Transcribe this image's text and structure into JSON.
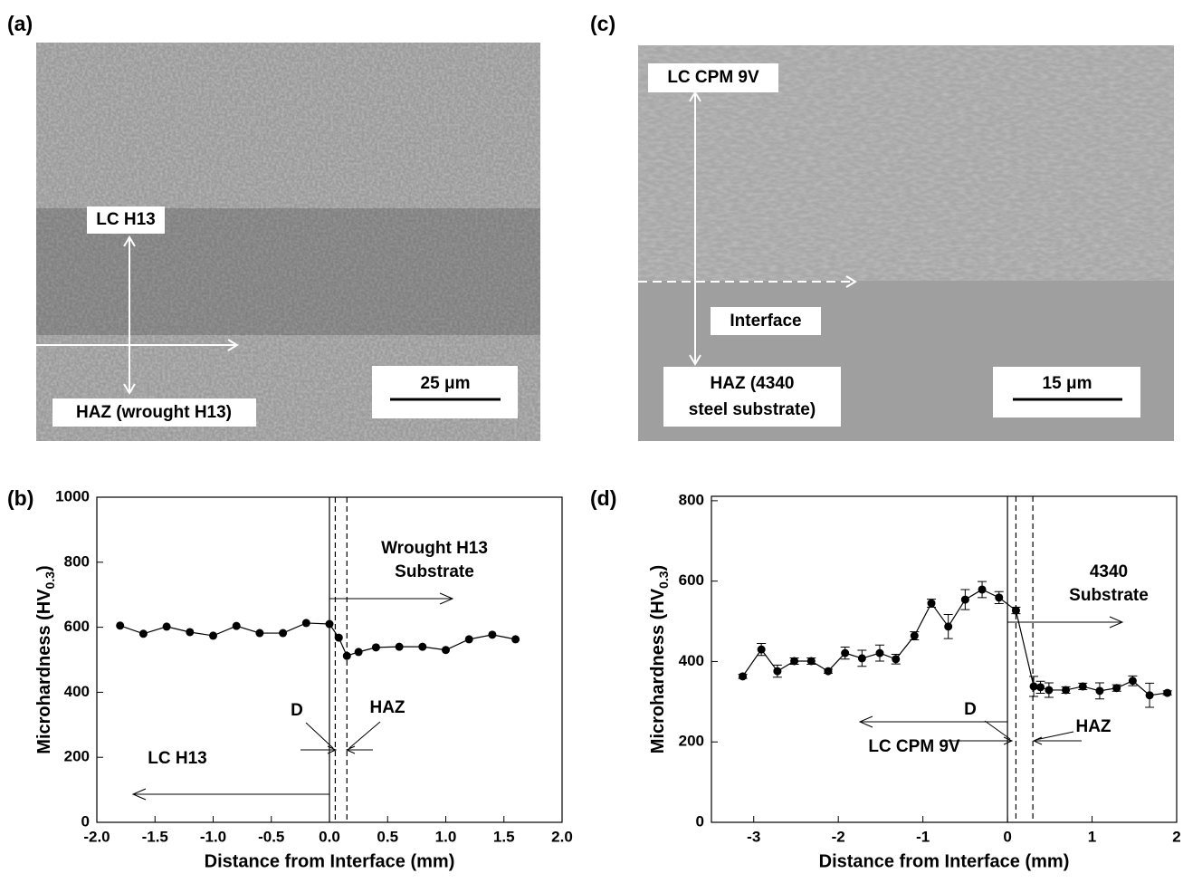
{
  "panels": [
    {
      "panel_label": "(a)",
      "labels": [
        "LC H13",
        "HAZ (wrought H13)"
      ],
      "scale_bar": "25 μm"
    },
    {
      "panel_label": "(c)",
      "labels": [
        "LC CPM 9V",
        "Interface",
        "HAZ (4340",
        "steel substrate)"
      ],
      "scale_bar": "15 μm"
    }
  ],
  "chart_data": [
    {
      "type": "line",
      "panel_label": "(b)",
      "x_label": "Distance from Interface (mm)",
      "y_label": "Microhardness (HV",
      "y_label_sub": "0.3",
      "y_label_end": ")",
      "xlim": [
        -2.0,
        2.0
      ],
      "ylim": [
        0,
        1000
      ],
      "xticks": [
        {
          "value": -2.0,
          "label": "-2.0"
        },
        -1.5,
        {
          "value": -1.0,
          "label": "-1.0"
        },
        -0.5,
        {
          "value": 0.0,
          "label": "0.0"
        },
        0.5,
        {
          "value": 1.0,
          "label": "1.0"
        },
        1.5,
        {
          "value": 2.0,
          "label": "2.0"
        }
      ],
      "yticks": [
        0,
        200,
        400,
        600,
        800,
        1000
      ],
      "color": "#000000",
      "x": [
        -1.8,
        -1.6,
        -1.4,
        -1.2,
        -1.0,
        -0.8,
        -0.6,
        -0.4,
        -0.2,
        0.0,
        0.08,
        0.15,
        0.25,
        0.4,
        0.6,
        0.8,
        1.0,
        1.2,
        1.4,
        1.6
      ],
      "values": [
        605,
        580,
        602,
        585,
        574,
        604,
        582,
        582,
        613,
        610,
        568,
        512,
        524,
        538,
        540,
        540,
        530,
        563,
        577,
        563
      ],
      "reference_lines": [
        {
          "x": 0.0,
          "style": "solid"
        },
        {
          "x": 0.05,
          "style": "dashed"
        },
        {
          "x": 0.15,
          "style": "dashed"
        }
      ],
      "annotations": [
        "Wrought H13",
        "Substrate",
        "LC H13",
        "D",
        "HAZ"
      ]
    },
    {
      "type": "line",
      "panel_label": "(d)",
      "x_label": "Distance from Interface (mm)",
      "y_label": "Microhardness (HV",
      "y_label_sub": "0.3",
      "y_label_end": ")",
      "xlim": [
        -3.5,
        2.0
      ],
      "ylim": [
        0,
        811
      ],
      "xticks": [
        -3,
        -2,
        -1,
        0,
        1,
        2
      ],
      "yticks": [
        0,
        200,
        400,
        600,
        800
      ],
      "color": "#000000",
      "x": [
        -3.13,
        -2.91,
        -2.72,
        -2.52,
        -2.32,
        -2.12,
        -1.92,
        -1.72,
        -1.51,
        -1.32,
        -1.1,
        -0.9,
        -0.7,
        -0.5,
        -0.3,
        -0.1,
        0.1,
        0.31,
        0.39,
        0.49,
        0.69,
        0.89,
        1.09,
        1.29,
        1.48,
        1.68,
        1.89
      ],
      "values": [
        363,
        430,
        376,
        401,
        401,
        376,
        421,
        408,
        421,
        406,
        464,
        545,
        487,
        554,
        579,
        559,
        527,
        338,
        336,
        329,
        329,
        338,
        327,
        334,
        352,
        316,
        322
      ],
      "errors": [
        5,
        15,
        15,
        8,
        8,
        5,
        15,
        20,
        20,
        12,
        10,
        10,
        30,
        25,
        20,
        15,
        8,
        25,
        15,
        18,
        8,
        8,
        20,
        8,
        12,
        30,
        5
      ],
      "reference_lines": [
        {
          "x": 0.0,
          "style": "solid"
        },
        {
          "x": 0.1,
          "style": "dashed"
        },
        {
          "x": 0.3,
          "style": "dashed"
        }
      ],
      "annotations": [
        "4340",
        "Substrate",
        "LC CPM 9V",
        "D",
        "HAZ"
      ]
    }
  ]
}
